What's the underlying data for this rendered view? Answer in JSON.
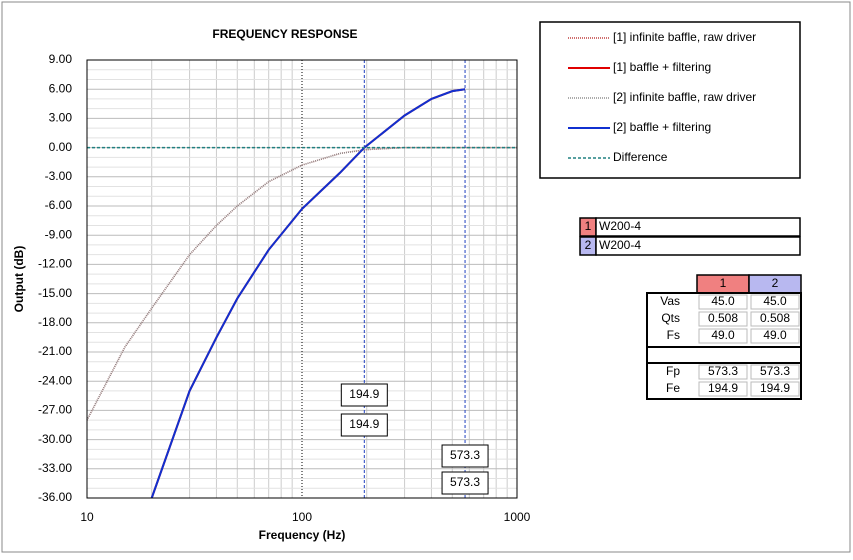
{
  "chart_data": {
    "type": "line",
    "title": "FREQUENCY RESPONSE",
    "x_label": "Frequency (Hz)",
    "y_label": "Output (dB)",
    "log_x": true,
    "grid": true,
    "xlim": [
      10,
      1000
    ],
    "xticks": [
      10,
      100,
      1000
    ],
    "ylim": [
      -36,
      9
    ],
    "yticks": [
      {
        "value": 9,
        "label": "9.00"
      },
      {
        "value": 6,
        "label": "6.00"
      },
      {
        "value": 3,
        "label": "3.00"
      },
      {
        "value": 0,
        "label": "0.00"
      },
      {
        "value": -3,
        "label": "-3.00"
      },
      {
        "value": -6,
        "label": "-6.00"
      },
      {
        "value": -9,
        "label": "-9.00"
      },
      {
        "value": -12,
        "label": "-12.00"
      },
      {
        "value": -15,
        "label": "-15.00"
      },
      {
        "value": -18,
        "label": "-18.00"
      },
      {
        "value": -21,
        "label": "-21.00"
      },
      {
        "value": -24,
        "label": "-24.00"
      },
      {
        "value": -27,
        "label": "-27.00"
      },
      {
        "value": -30,
        "label": "-30.00"
      },
      {
        "value": -33,
        "label": "-33.00"
      },
      {
        "value": -36,
        "label": "-36.00"
      }
    ],
    "series": [
      {
        "name": "[1] infinite baffle, raw driver",
        "color": "#c04040",
        "dash": "dotted",
        "x": [
          10,
          15,
          20,
          30,
          40,
          50,
          70,
          100,
          150,
          200,
          300,
          500,
          1000
        ],
        "values": [
          -28,
          -20.5,
          -16.5,
          -11,
          -8,
          -6,
          -3.5,
          -1.8,
          -0.6,
          -0.2,
          0,
          0,
          0
        ]
      },
      {
        "name": "[1] baffle + filtering",
        "color": "#e00000",
        "dash": "solid",
        "x": [
          20,
          30,
          40,
          50,
          70,
          100,
          150,
          195,
          300,
          400,
          500,
          573
        ],
        "values": [
          -36,
          -25,
          -19.5,
          -15.5,
          -10.5,
          -6.3,
          -2.6,
          0,
          3.3,
          5,
          5.8,
          6
        ]
      },
      {
        "name": "[2] infinite baffle, raw driver",
        "color": "#909090",
        "dash": "dotted",
        "x": [
          10,
          15,
          20,
          30,
          40,
          50,
          70,
          100,
          150,
          200,
          300,
          500,
          1000
        ],
        "values": [
          -28,
          -20.5,
          -16.5,
          -11,
          -8,
          -6,
          -3.5,
          -1.8,
          -0.6,
          -0.2,
          0,
          0,
          0
        ]
      },
      {
        "name": "[2] baffle + filtering",
        "color": "#1030d0",
        "dash": "solid",
        "x": [
          20,
          30,
          40,
          50,
          70,
          100,
          150,
          195,
          300,
          400,
          500,
          573
        ],
        "values": [
          -36,
          -25,
          -19.5,
          -15.5,
          -10.5,
          -6.3,
          -2.6,
          0,
          3.3,
          5,
          5.8,
          6
        ]
      },
      {
        "name": "Difference",
        "color": "#208080",
        "dash": "dashed",
        "x": [
          10,
          1000
        ],
        "values": [
          0,
          0
        ]
      }
    ],
    "markers": [
      194.9,
      573.3
    ]
  },
  "drivers": [
    {
      "index": "1",
      "name": "W200-4",
      "color": "#f08080"
    },
    {
      "index": "2",
      "name": "W200-4",
      "color": "#b8b8f0"
    }
  ],
  "table": {
    "columns": [
      "1",
      "2"
    ],
    "rows": [
      [
        "Vas",
        "45.0",
        "45.0"
      ],
      [
        "Qts",
        "0.508",
        "0.508"
      ],
      [
        "Fs",
        "49.0",
        "49.0"
      ],
      [
        "Fp",
        "573.3",
        "573.3"
      ],
      [
        "Fe",
        "194.9",
        "194.9"
      ]
    ]
  }
}
